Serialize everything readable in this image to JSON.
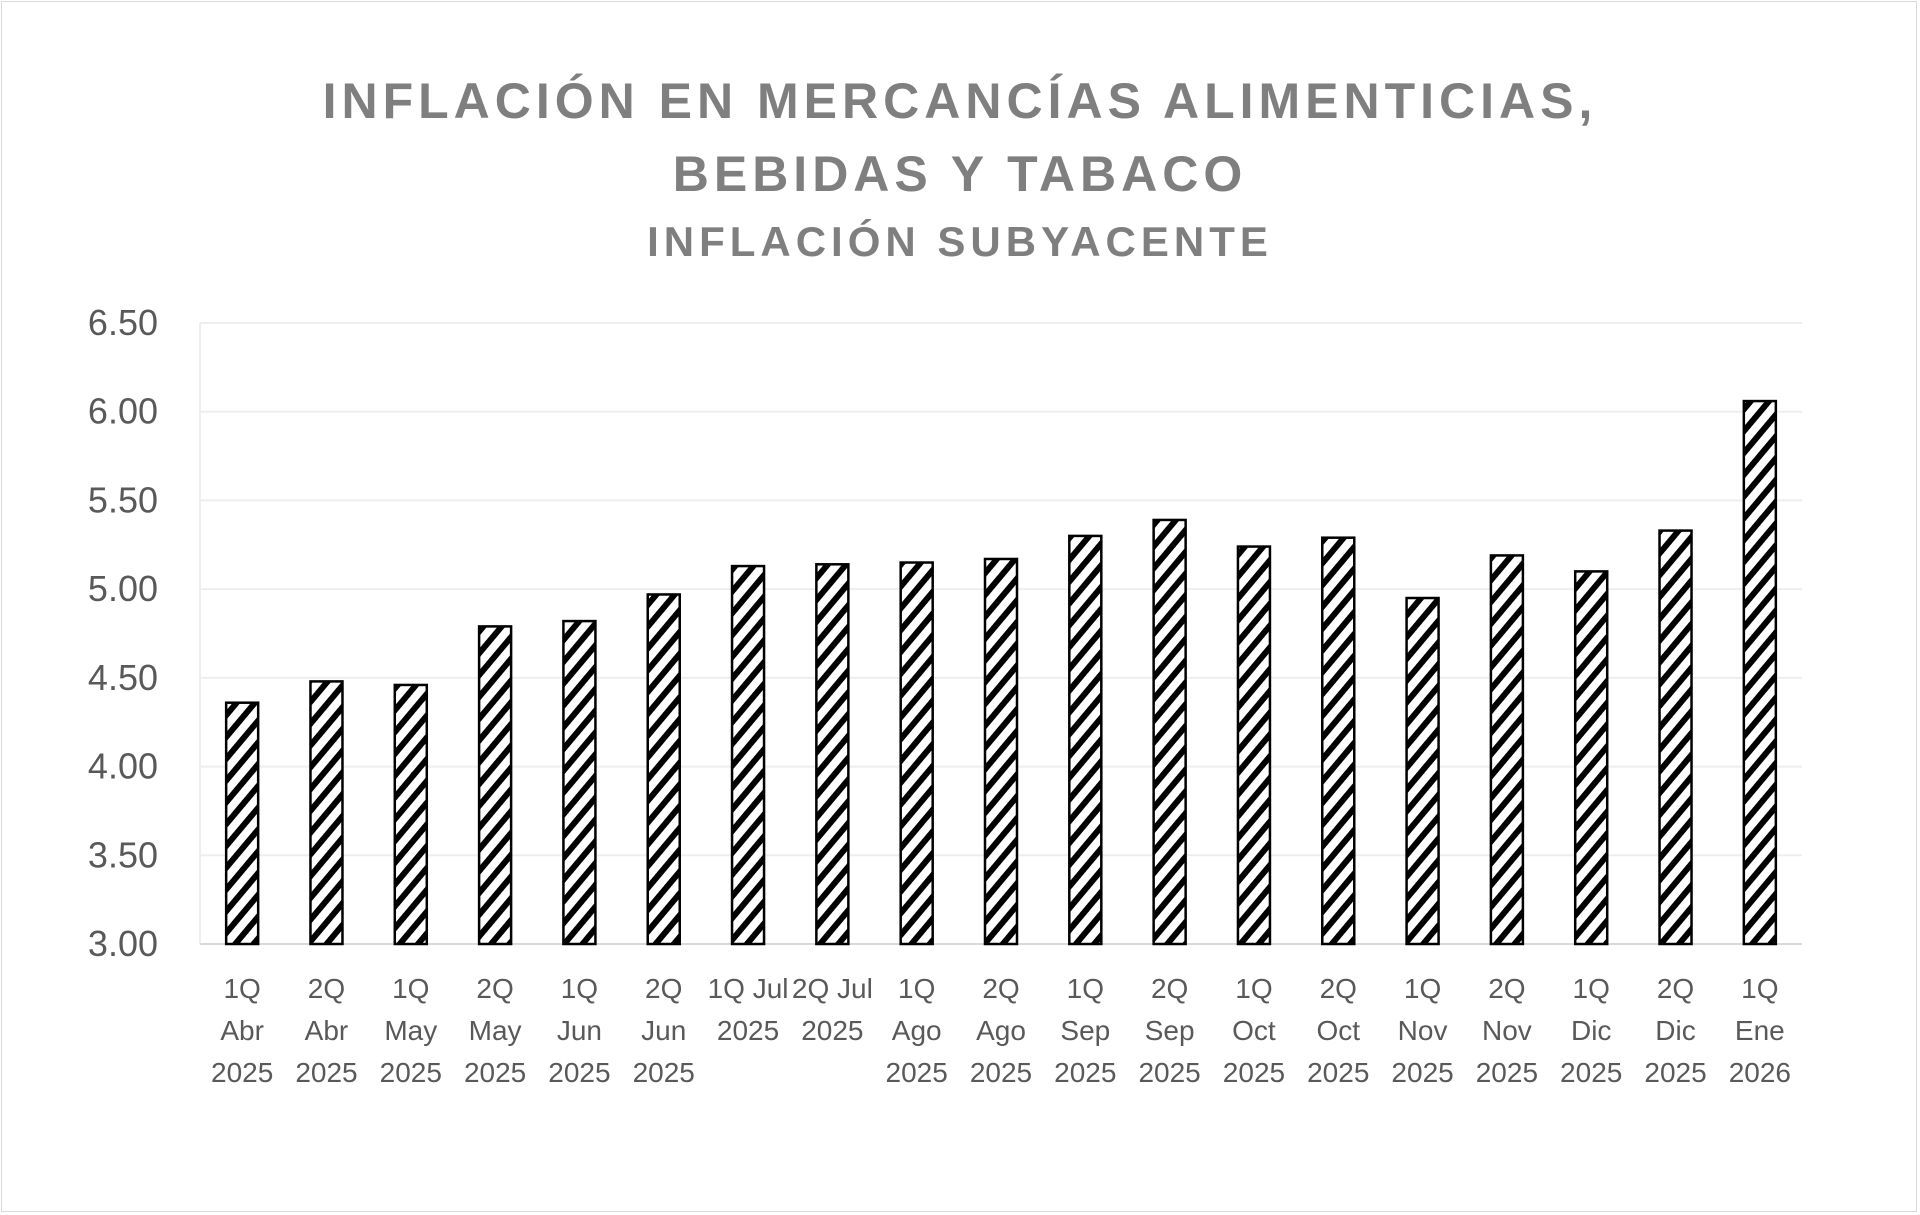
{
  "chart_data": {
    "type": "bar",
    "title": "INFLACIÓN EN MERCANCÍAS ALIMENTICIAS,",
    "title_line2": "BEBIDAS Y TABACO",
    "subtitle": "INFLACIÓN SUBYACENTE",
    "xlabel": "",
    "ylabel": "",
    "ylim": [
      3.0,
      6.5
    ],
    "yticks": [
      "3.00",
      "3.50",
      "4.00",
      "4.50",
      "5.00",
      "5.50",
      "6.00",
      "6.50"
    ],
    "grid": true,
    "bar_fill": "diagonal-hatch black on white",
    "colors": {
      "bar": "#000000",
      "grid": "#eeeeee",
      "text": "#595959",
      "title": "#7f7f7f"
    },
    "categories": [
      [
        "1Q",
        "Abr",
        "2025"
      ],
      [
        "2Q",
        "Abr",
        "2025"
      ],
      [
        "1Q",
        "May",
        "2025"
      ],
      [
        "2Q",
        "May",
        "2025"
      ],
      [
        "1Q",
        "Jun",
        "2025"
      ],
      [
        "2Q",
        "Jun",
        "2025"
      ],
      [
        "1Q Jul",
        "2025"
      ],
      [
        "2Q Jul",
        "2025"
      ],
      [
        "1Q",
        "Ago",
        "2025"
      ],
      [
        "2Q",
        "Ago",
        "2025"
      ],
      [
        "1Q",
        "Sep",
        "2025"
      ],
      [
        "2Q",
        "Sep",
        "2025"
      ],
      [
        "1Q",
        "Oct",
        "2025"
      ],
      [
        "2Q",
        "Oct",
        "2025"
      ],
      [
        "1Q",
        "Nov",
        "2025"
      ],
      [
        "2Q",
        "Nov",
        "2025"
      ],
      [
        "1Q",
        "Dic",
        "2025"
      ],
      [
        "2Q",
        "Dic",
        "2025"
      ],
      [
        "1Q",
        "Ene",
        "2026"
      ]
    ],
    "values": [
      4.36,
      4.48,
      4.46,
      4.79,
      4.82,
      4.97,
      5.13,
      5.14,
      5.15,
      5.17,
      5.3,
      5.39,
      5.24,
      5.29,
      4.95,
      5.19,
      5.1,
      5.33,
      6.06
    ]
  }
}
